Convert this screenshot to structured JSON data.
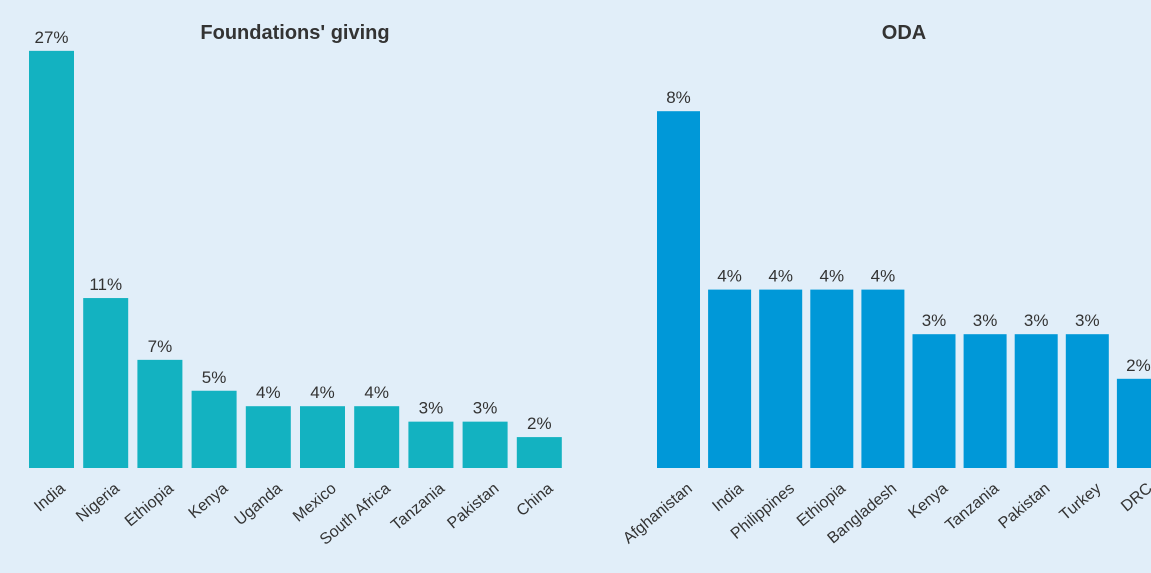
{
  "chart_data": [
    {
      "type": "bar",
      "title": "Foundations' giving",
      "categories": [
        "India",
        "Nigeria",
        "Ethiopia",
        "Kenya",
        "Uganda",
        "Mexico",
        "South Africa",
        "Tanzania",
        "Pakistan",
        "China"
      ],
      "values": [
        27,
        11,
        7,
        5,
        4,
        4,
        4,
        3,
        3,
        2
      ],
      "labels": [
        "27%",
        "11%",
        "7%",
        "5%",
        "4%",
        "4%",
        "4%",
        "3%",
        "3%",
        "2%"
      ],
      "unit": "%",
      "color": "#13b2c1",
      "grid": false,
      "legend": "none"
    },
    {
      "type": "bar",
      "title": "ODA",
      "categories": [
        "Afghanistan",
        "India",
        "Philippines",
        "Ethiopia",
        "Bangladesh",
        "Kenya",
        "Tanzania",
        "Pakistan",
        "Turkey",
        "DRC"
      ],
      "values": [
        8,
        4,
        4,
        4,
        4,
        3,
        3,
        3,
        3,
        2
      ],
      "labels": [
        "8%",
        "4%",
        "4%",
        "4%",
        "4%",
        "3%",
        "3%",
        "3%",
        "3%",
        "2%"
      ],
      "unit": "%",
      "color": "#0098d8",
      "grid": false,
      "legend": "none"
    }
  ]
}
